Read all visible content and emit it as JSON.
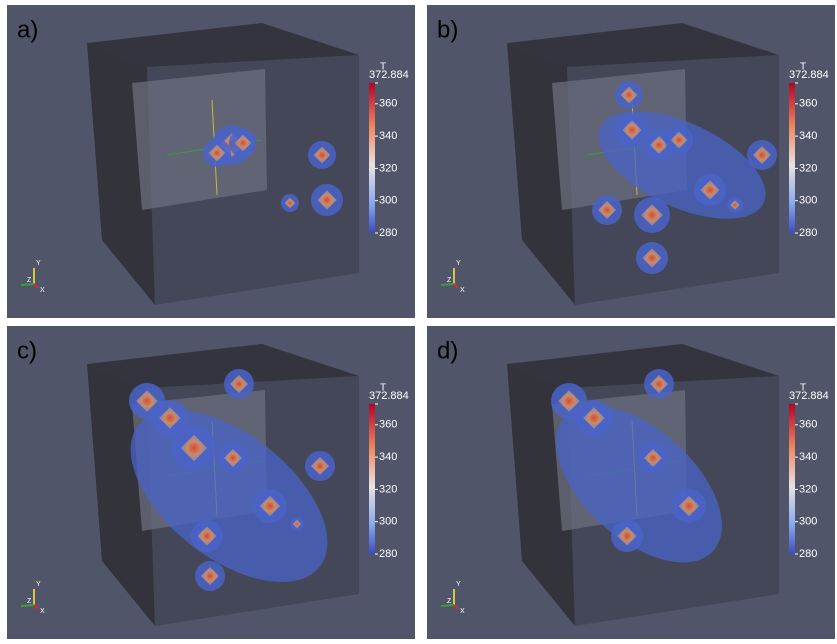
{
  "panels": [
    {
      "label": "a)",
      "colorbar": {
        "title": "T",
        "range": [
          280,
          372.884
        ],
        "ticks": [
          372.884,
          360,
          340,
          320,
          300,
          280
        ]
      },
      "axes": {
        "x": "X",
        "y": "Y",
        "z": "Z"
      }
    },
    {
      "label": "b)",
      "colorbar": {
        "title": "T",
        "range": [
          280,
          372.884
        ],
        "ticks": [
          372.884,
          360,
          340,
          320,
          300,
          280
        ]
      },
      "axes": {
        "x": "X",
        "y": "Y",
        "z": "Z"
      }
    },
    {
      "label": "c)",
      "colorbar": {
        "title": "T",
        "range": [
          280,
          372.884
        ],
        "ticks": [
          372.884,
          360,
          340,
          320,
          300,
          280
        ]
      },
      "axes": {
        "x": "X",
        "y": "Y",
        "z": "Z"
      }
    },
    {
      "label": "d)",
      "colorbar": {
        "title": "T",
        "range": [
          280,
          372.884
        ],
        "ticks": [
          372.884,
          360,
          340,
          320,
          300,
          280
        ]
      },
      "axes": {
        "x": "X",
        "y": "Y",
        "z": "Z"
      }
    }
  ]
}
